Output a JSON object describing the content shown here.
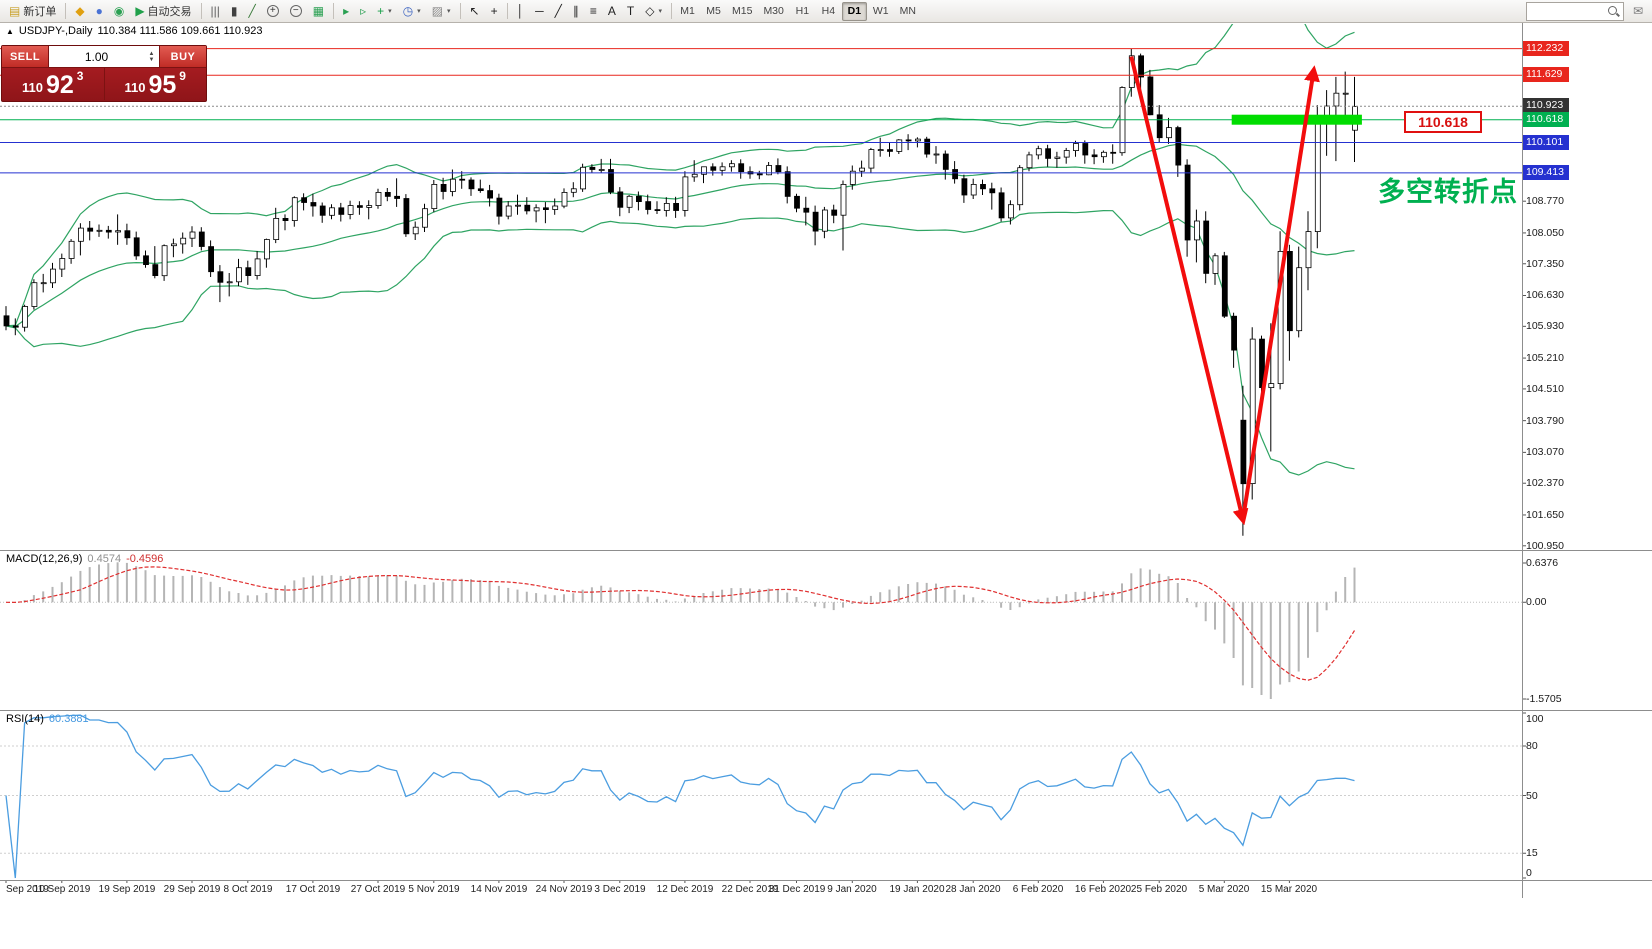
{
  "toolbar": {
    "buttons": [
      {
        "name": "new-order-button",
        "glyph": "▤",
        "tint": "#c8a028",
        "label": "新订单"
      },
      {
        "name": "toolbar-sep-1",
        "kind": "sep"
      },
      {
        "name": "favorites-icon",
        "glyph": "◆",
        "tint": "#e0a010"
      },
      {
        "name": "profiles-icon",
        "glyph": "●",
        "tint": "#4a72d4"
      },
      {
        "name": "community-icon",
        "glyph": "◉",
        "tint": "#2aa052"
      },
      {
        "name": "autotrading-button",
        "glyph": "▶",
        "tint": "#20a04a",
        "label": "自动交易"
      },
      {
        "name": "toolbar-sep-2",
        "kind": "sep"
      },
      {
        "name": "bar-chart-button",
        "glyph": "|||",
        "tint": "#606060"
      },
      {
        "name": "candlestick-chart-button",
        "glyph": "▮",
        "tint": "#404040"
      },
      {
        "name": "line-chart-button",
        "glyph": "╱",
        "tint": "#3a7a3a"
      },
      {
        "name": "zoom-in-button",
        "glyph": "+",
        "lens": true
      },
      {
        "name": "zoom-out-button",
        "glyph": "−",
        "lens": true
      },
      {
        "name": "tile-windows-button",
        "glyph": "▦",
        "tint": "#2aa052"
      },
      {
        "name": "toolbar-sep-3",
        "kind": "sep"
      },
      {
        "name": "auto-scroll-button",
        "glyph": "▸",
        "tint": "#2aa052"
      },
      {
        "name": "chart-shift-button",
        "glyph": "▹",
        "tint": "#2aa052"
      },
      {
        "name": "add-indicator-button",
        "glyph": "+",
        "tint": "#18a048",
        "dropdown": true
      },
      {
        "name": "periods-button",
        "glyph": "◷",
        "tint": "#3a62c0",
        "dropdown": true
      },
      {
        "name": "templates-button",
        "glyph": "▨",
        "tint": "#888888",
        "dropdown": true
      },
      {
        "name": "toolbar-sep-4",
        "kind": "sep"
      },
      {
        "name": "cursor-button",
        "glyph": "↖",
        "tint": "#222222"
      },
      {
        "name": "crosshair-button",
        "glyph": "+",
        "tint": "#222222"
      },
      {
        "name": "toolbar-sep-5",
        "kind": "sep"
      },
      {
        "name": "vertical-line-button",
        "glyph": "│",
        "tint": "#222222"
      },
      {
        "name": "horizontal-line-button",
        "glyph": "─",
        "tint": "#222222"
      },
      {
        "name": "trendline-button",
        "glyph": "╱",
        "tint": "#222222"
      },
      {
        "name": "channel-button",
        "glyph": "∥",
        "tint": "#222222"
      },
      {
        "name": "fibonacci-button",
        "glyph": "≡",
        "tint": "#222222"
      },
      {
        "name": "text-button",
        "glyph": "A",
        "tint": "#222222"
      },
      {
        "name": "text-label-button",
        "glyph": "T",
        "tint": "#222222"
      },
      {
        "name": "shapes-button",
        "glyph": "◇",
        "tint": "#222222",
        "dropdown": true
      },
      {
        "name": "toolbar-sep-6",
        "kind": "sep"
      }
    ],
    "timeframes": [
      {
        "label": "M1"
      },
      {
        "label": "M5"
      },
      {
        "label": "M15"
      },
      {
        "label": "M30"
      },
      {
        "label": "H1"
      },
      {
        "label": "H4"
      },
      {
        "label": "D1",
        "active": true
      },
      {
        "label": "W1"
      },
      {
        "label": "MN"
      }
    ],
    "right_icons": [
      {
        "name": "chat-support-icon",
        "glyph": "✉",
        "tint": "#777777"
      }
    ]
  },
  "chart_header": {
    "icon": "▲",
    "symbol": "USDJPY-,Daily",
    "ohlc": "110.384 111.586 109.661 110.923"
  },
  "trade_panel": {
    "sell_label": "SELL",
    "buy_label": "BUY",
    "volume": "1.00",
    "sell_small": "110",
    "sell_big": "92",
    "sell_sup": "3",
    "buy_small": "110",
    "buy_big": "95",
    "buy_sup": "9"
  },
  "main_chart": {
    "hlines": [
      {
        "price": "112.232",
        "style": "red"
      },
      {
        "price": "111.629",
        "style": "red"
      },
      {
        "price": "110.923",
        "style": "current"
      },
      {
        "price": "110.618",
        "style": "green"
      },
      {
        "price": "110.101",
        "style": "blue"
      },
      {
        "price": "109.413",
        "style": "blue"
      }
    ],
    "axis_plain": [
      "108.770",
      "108.050",
      "107.350",
      "106.630",
      "105.930",
      "105.210",
      "104.510",
      "103.790",
      "103.070",
      "102.370",
      "101.650",
      "100.950"
    ],
    "highlight_band": {
      "from_idx": 131.8,
      "to_idx": 145.8,
      "price": 110.618,
      "thickness": 10,
      "color": "#00dd00"
    },
    "price_callout": {
      "text": "110.618"
    },
    "annotation": {
      "text": "多空转折点",
      "color": "#00b050"
    },
    "arrows": [
      {
        "from_idx": 121,
        "from_price": 112.05,
        "to_idx": 133,
        "to_price": 101.55
      },
      {
        "from_idx": 133,
        "from_price": 101.55,
        "to_idx": 140.6,
        "to_price": 111.72
      }
    ]
  },
  "indicators": {
    "macd": {
      "label": "MACD(12,26,9)",
      "value_main": "0.4574",
      "value_signal": "-0.4596",
      "axis": [
        "0.6376",
        "0.00",
        "-1.5705"
      ]
    },
    "rsi": {
      "label": "RSI(14)",
      "value": "60.3881",
      "axis": [
        "100",
        "80",
        "50",
        "15",
        "0"
      ],
      "levels": [
        80,
        50,
        15
      ],
      "period": 14
    }
  },
  "chart_data": {
    "type": "candlestick",
    "symbol": "USDJPY",
    "timeframe": "Daily",
    "candles": [
      [
        106.17,
        106.39,
        105.84,
        105.94
      ],
      [
        105.94,
        106.11,
        105.73,
        105.91
      ],
      [
        105.91,
        106.42,
        105.81,
        106.38
      ],
      [
        106.38,
        107.0,
        106.31,
        106.92
      ],
      [
        106.92,
        107.12,
        106.7,
        106.92
      ],
      [
        106.92,
        107.37,
        106.8,
        107.23
      ],
      [
        107.23,
        107.58,
        107.05,
        107.47
      ],
      [
        107.47,
        107.91,
        107.35,
        107.86
      ],
      [
        107.86,
        108.27,
        107.54,
        108.16
      ],
      [
        108.16,
        108.32,
        107.88,
        108.09
      ],
      [
        108.09,
        108.24,
        107.96,
        108.11
      ],
      [
        108.11,
        108.21,
        107.92,
        108.07
      ],
      [
        108.07,
        108.47,
        107.78,
        108.1
      ],
      [
        108.1,
        108.26,
        107.78,
        107.94
      ],
      [
        107.94,
        108.08,
        107.44,
        107.53
      ],
      [
        107.53,
        107.65,
        107.26,
        107.33
      ],
      [
        107.33,
        107.75,
        107.02,
        107.08
      ],
      [
        107.08,
        107.79,
        106.96,
        107.76
      ],
      [
        107.76,
        107.92,
        107.5,
        107.8
      ],
      [
        107.8,
        108.06,
        107.58,
        107.93
      ],
      [
        107.93,
        108.2,
        107.73,
        108.07
      ],
      [
        108.07,
        108.18,
        107.65,
        107.74
      ],
      [
        107.74,
        107.88,
        107.05,
        107.17
      ],
      [
        107.17,
        107.32,
        106.48,
        106.93
      ],
      [
        106.93,
        107.14,
        106.61,
        106.94
      ],
      [
        106.94,
        107.46,
        106.84,
        107.26
      ],
      [
        107.26,
        107.42,
        106.87,
        107.08
      ],
      [
        107.08,
        107.64,
        106.99,
        107.46
      ],
      [
        107.46,
        107.92,
        107.26,
        107.9
      ],
      [
        107.9,
        108.62,
        107.82,
        108.38
      ],
      [
        108.38,
        108.47,
        108.11,
        108.33
      ],
      [
        108.33,
        108.88,
        108.19,
        108.85
      ],
      [
        108.85,
        108.95,
        108.56,
        108.74
      ],
      [
        108.74,
        108.94,
        108.42,
        108.66
      ],
      [
        108.66,
        108.74,
        108.28,
        108.45
      ],
      [
        108.45,
        108.7,
        108.36,
        108.62
      ],
      [
        108.62,
        108.73,
        108.31,
        108.47
      ],
      [
        108.47,
        108.78,
        108.36,
        108.67
      ],
      [
        108.67,
        108.77,
        108.46,
        108.63
      ],
      [
        108.63,
        108.79,
        108.36,
        108.67
      ],
      [
        108.67,
        109.05,
        108.6,
        108.97
      ],
      [
        108.97,
        109.07,
        108.77,
        108.88
      ],
      [
        108.88,
        109.29,
        108.64,
        108.83
      ],
      [
        108.83,
        108.93,
        107.96,
        108.03
      ],
      [
        108.03,
        108.31,
        107.89,
        108.18
      ],
      [
        108.18,
        108.71,
        108.07,
        108.6
      ],
      [
        108.6,
        109.25,
        108.52,
        109.15
      ],
      [
        109.15,
        109.3,
        108.81,
        108.99
      ],
      [
        108.99,
        109.49,
        108.88,
        109.27
      ],
      [
        109.27,
        109.45,
        109.05,
        109.25
      ],
      [
        109.25,
        109.31,
        108.89,
        109.05
      ],
      [
        109.05,
        109.26,
        108.96,
        109.01
      ],
      [
        109.01,
        109.14,
        108.65,
        108.84
      ],
      [
        108.84,
        108.94,
        108.24,
        108.43
      ],
      [
        108.43,
        108.77,
        108.36,
        108.66
      ],
      [
        108.66,
        108.92,
        108.46,
        108.68
      ],
      [
        108.68,
        108.86,
        108.47,
        108.55
      ],
      [
        108.55,
        108.7,
        108.29,
        108.62
      ],
      [
        108.62,
        108.75,
        108.27,
        108.58
      ],
      [
        108.58,
        108.83,
        108.46,
        108.66
      ],
      [
        108.66,
        109.06,
        108.61,
        108.97
      ],
      [
        108.97,
        109.2,
        108.86,
        109.05
      ],
      [
        109.05,
        109.62,
        108.98,
        109.54
      ],
      [
        109.54,
        109.61,
        109.41,
        109.49
      ],
      [
        109.49,
        109.73,
        109.42,
        109.49
      ],
      [
        109.49,
        109.73,
        108.93,
        108.98
      ],
      [
        108.98,
        109.09,
        108.43,
        108.63
      ],
      [
        108.63,
        108.91,
        108.5,
        108.88
      ],
      [
        108.88,
        108.99,
        108.56,
        108.76
      ],
      [
        108.76,
        108.92,
        108.47,
        108.58
      ],
      [
        108.58,
        108.77,
        108.48,
        108.56
      ],
      [
        108.56,
        108.86,
        108.42,
        108.72
      ],
      [
        108.72,
        108.87,
        108.39,
        108.56
      ],
      [
        108.56,
        109.45,
        108.42,
        109.32
      ],
      [
        109.32,
        109.7,
        109.21,
        109.38
      ],
      [
        109.38,
        109.55,
        109.18,
        109.55
      ],
      [
        109.55,
        109.63,
        109.35,
        109.47
      ],
      [
        109.47,
        109.65,
        109.35,
        109.55
      ],
      [
        109.55,
        109.7,
        109.44,
        109.62
      ],
      [
        109.62,
        109.72,
        109.28,
        109.44
      ],
      [
        109.44,
        109.56,
        109.28,
        109.39
      ],
      [
        109.39,
        109.46,
        109.27,
        109.37
      ],
      [
        109.37,
        109.66,
        109.36,
        109.58
      ],
      [
        109.58,
        109.74,
        109.38,
        109.44
      ],
      [
        109.44,
        109.56,
        108.72,
        108.88
      ],
      [
        108.88,
        108.94,
        108.52,
        108.61
      ],
      [
        108.61,
        108.87,
        108.22,
        108.52
      ],
      [
        108.52,
        108.67,
        107.77,
        108.09
      ],
      [
        108.09,
        108.64,
        107.93,
        108.57
      ],
      [
        108.57,
        108.69,
        108.27,
        108.45
      ],
      [
        108.45,
        109.24,
        107.65,
        109.15
      ],
      [
        109.15,
        109.58,
        109.03,
        109.45
      ],
      [
        109.45,
        109.69,
        109.32,
        109.52
      ],
      [
        109.52,
        109.98,
        109.41,
        109.94
      ],
      [
        109.94,
        110.21,
        109.78,
        109.94
      ],
      [
        109.94,
        110.09,
        109.78,
        109.9
      ],
      [
        109.9,
        110.18,
        109.84,
        110.16
      ],
      [
        110.16,
        110.29,
        109.93,
        110.14
      ],
      [
        110.14,
        110.22,
        109.99,
        110.18
      ],
      [
        110.18,
        110.23,
        109.76,
        109.84
      ],
      [
        109.84,
        110.02,
        109.62,
        109.84
      ],
      [
        109.84,
        109.92,
        109.26,
        109.49
      ],
      [
        109.49,
        109.68,
        109.17,
        109.28
      ],
      [
        109.28,
        109.37,
        108.73,
        108.91
      ],
      [
        108.91,
        109.28,
        108.82,
        109.15
      ],
      [
        109.15,
        109.26,
        108.91,
        109.05
      ],
      [
        109.05,
        109.19,
        108.58,
        108.96
      ],
      [
        108.96,
        109.08,
        108.31,
        108.39
      ],
      [
        108.39,
        108.79,
        108.24,
        108.69
      ],
      [
        108.69,
        109.59,
        108.56,
        109.53
      ],
      [
        109.53,
        109.89,
        109.45,
        109.82
      ],
      [
        109.82,
        110.03,
        109.72,
        109.96
      ],
      [
        109.96,
        110.05,
        109.55,
        109.74
      ],
      [
        109.74,
        109.89,
        109.53,
        109.77
      ],
      [
        109.77,
        109.98,
        109.62,
        109.92
      ],
      [
        109.92,
        110.14,
        109.78,
        110.08
      ],
      [
        110.08,
        110.15,
        109.62,
        109.82
      ],
      [
        109.82,
        109.95,
        109.61,
        109.78
      ],
      [
        109.78,
        109.92,
        109.64,
        109.88
      ],
      [
        109.88,
        110.06,
        109.62,
        109.87
      ],
      [
        109.87,
        111.38,
        109.8,
        111.35
      ],
      [
        111.35,
        112.23,
        111.14,
        112.07
      ],
      [
        112.07,
        112.12,
        111.23,
        111.59
      ],
      [
        111.59,
        111.75,
        110.72,
        110.73
      ],
      [
        110.73,
        110.95,
        110.1,
        110.21
      ],
      [
        110.21,
        110.66,
        110.07,
        110.44
      ],
      [
        110.44,
        110.48,
        109.32,
        109.59
      ],
      [
        109.59,
        109.72,
        107.51,
        107.89
      ],
      [
        107.89,
        108.58,
        107.38,
        108.32
      ],
      [
        108.32,
        108.54,
        106.91,
        107.13
      ],
      [
        107.13,
        107.59,
        106.87,
        107.53
      ],
      [
        107.53,
        107.62,
        106.12,
        106.16
      ],
      [
        106.16,
        106.24,
        104.99,
        105.39
      ],
      [
        103.8,
        104.58,
        101.18,
        102.36
      ],
      [
        102.36,
        105.91,
        102.0,
        105.64
      ],
      [
        105.64,
        105.72,
        104.15,
        104.54
      ],
      [
        104.54,
        106.0,
        103.09,
        104.63
      ],
      [
        104.63,
        108.09,
        104.5,
        107.63
      ],
      [
        107.63,
        107.78,
        105.15,
        105.83
      ],
      [
        105.83,
        107.74,
        105.68,
        107.26
      ],
      [
        107.26,
        108.54,
        106.75,
        108.08
      ],
      [
        108.08,
        110.95,
        107.7,
        110.71
      ],
      [
        110.71,
        111.29,
        109.8,
        110.93
      ],
      [
        110.93,
        111.59,
        109.68,
        111.22
      ],
      [
        111.22,
        111.71,
        110.68,
        111.22
      ],
      [
        110.38,
        111.59,
        109.66,
        110.92
      ]
    ],
    "date_labels": [
      {
        "text": "Sep 2019",
        "idx": 0
      },
      {
        "text": "10 Sep 2019",
        "idx": 6
      },
      {
        "text": "19 Sep 2019",
        "idx": 13
      },
      {
        "text": "29 Sep 2019",
        "idx": 20
      },
      {
        "text": "8 Oct 2019",
        "idx": 26
      },
      {
        "text": "17 Oct 2019",
        "idx": 33
      },
      {
        "text": "27 Oct 2019",
        "idx": 40
      },
      {
        "text": "5 Nov 2019",
        "idx": 46
      },
      {
        "text": "14 Nov 2019",
        "idx": 53
      },
      {
        "text": "24 Nov 2019",
        "idx": 60
      },
      {
        "text": "3 Dec 2019",
        "idx": 66
      },
      {
        "text": "12 Dec 2019",
        "idx": 73
      },
      {
        "text": "22 Dec 2019",
        "idx": 80
      },
      {
        "text": "31 Dec 2019",
        "idx": 85
      },
      {
        "text": "9 Jan 2020",
        "idx": 91
      },
      {
        "text": "19 Jan 2020",
        "idx": 98
      },
      {
        "text": "28 Jan 2020",
        "idx": 104
      },
      {
        "text": "6 Feb 2020",
        "idx": 111
      },
      {
        "text": "16 Feb 2020",
        "idx": 118
      },
      {
        "text": "25 Feb 2020",
        "idx": 124
      },
      {
        "text": "5 Mar 2020",
        "idx": 131
      },
      {
        "text": "15 Mar 2020",
        "idx": 138
      }
    ]
  }
}
